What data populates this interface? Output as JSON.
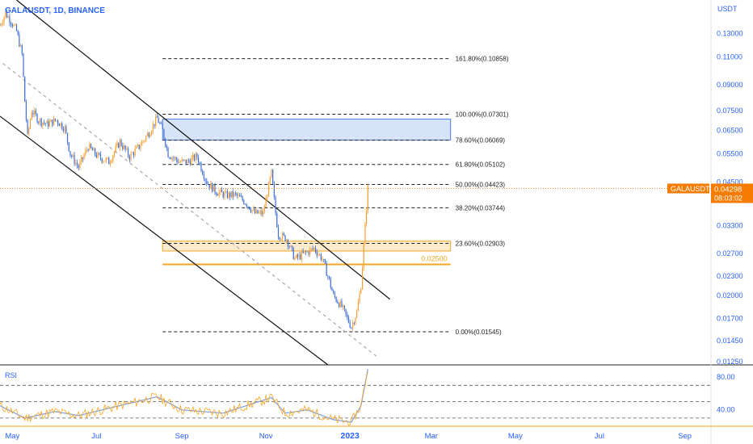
{
  "header": {
    "symbol_text": "GALAUSDT, 1D, BINANCE"
  },
  "price_axis": {
    "unit_label": "USDT",
    "ticks": [
      0.13,
      0.11,
      0.09,
      0.075,
      0.065,
      0.055,
      0.045,
      0.033,
      0.027,
      0.023,
      0.02,
      0.017,
      0.0145,
      0.0125
    ],
    "tick_labels": [
      "0.13000",
      "0.11000",
      "0.09000",
      "0.07500",
      "0.06500",
      "0.05500",
      "0.04500",
      "0.03300",
      "0.02700",
      "0.02300",
      "0.02000",
      "0.01700",
      "0.01450",
      "0.01250"
    ],
    "scale": "log",
    "range": [
      0.0122,
      0.165
    ]
  },
  "current_price": {
    "symbol_tag": "GALAUSDT",
    "price_label": "0.04298",
    "countdown": "08:03:02",
    "value": 0.04298,
    "color": "#f57c00"
  },
  "fib_levels": [
    {
      "ratio": 1.618,
      "value": 0.10858,
      "label": "161.80%(0.10858)"
    },
    {
      "ratio": 1.0,
      "value": 0.07301,
      "label": "100.00%(0.07301)"
    },
    {
      "ratio": 0.786,
      "value": 0.06069,
      "label": "78.60%(0.06069)"
    },
    {
      "ratio": 0.618,
      "value": 0.05102,
      "label": "61.80%(0.05102)"
    },
    {
      "ratio": 0.5,
      "value": 0.04423,
      "label": "50.00%(0.04423)"
    },
    {
      "ratio": 0.382,
      "value": 0.03744,
      "label": "38.20%(0.03744)"
    },
    {
      "ratio": 0.236,
      "value": 0.02903,
      "label": "23.60%(0.02903)"
    },
    {
      "ratio": 0.0,
      "value": 0.01545,
      "label": "0.00%(0.01545)"
    }
  ],
  "zones": [
    {
      "name": "supply-zone",
      "from_date": "2022-08-18",
      "to_date": "2023-03-15",
      "low": 0.06069,
      "high": 0.0705,
      "color": "#4a7fe0"
    },
    {
      "name": "support-zone",
      "from_date": "2022-08-18",
      "to_date": "2023-03-15",
      "low": 0.0275,
      "high": 0.0295,
      "color": "#f5a623"
    }
  ],
  "horizontal_line": {
    "value": 0.025,
    "label": "0.02500",
    "color": "#f5a623"
  },
  "time_axis": {
    "labels": [
      {
        "text": "May",
        "date": "2022-05-01",
        "bold": false
      },
      {
        "text": "Jul",
        "date": "2022-07-01",
        "bold": false
      },
      {
        "text": "Sep",
        "date": "2022-09-01",
        "bold": false
      },
      {
        "text": "Nov",
        "date": "2022-11-01",
        "bold": false
      },
      {
        "text": "2023",
        "date": "2023-01-01",
        "bold": true
      },
      {
        "text": "Mar",
        "date": "2023-03-01",
        "bold": false
      },
      {
        "text": "May",
        "date": "2023-05-01",
        "bold": false
      },
      {
        "text": "Jul",
        "date": "2023-07-01",
        "bold": false
      },
      {
        "text": "Sep",
        "date": "2023-09-01",
        "bold": false
      }
    ]
  },
  "rsi": {
    "label": "RSI",
    "tick_labels": [
      "80.00",
      "40.00"
    ],
    "ticks": [
      80,
      40
    ],
    "band_levels": [
      70,
      50,
      30
    ],
    "range": [
      20,
      95
    ]
  },
  "chart_data": {
    "type": "candlestick",
    "symbol": "GALAUSDT",
    "interval": "1D",
    "exchange": "BINANCE",
    "x_range": [
      "2022-04-22",
      "2023-09-20"
    ],
    "y_scale": "log",
    "y_range": [
      0.0122,
      0.165
    ],
    "up_color": "#f7a032",
    "down_color": "#3f6fd6",
    "price_path": [
      [
        "2022-04-22",
        0.138
      ],
      [
        "2022-04-26",
        0.15
      ],
      [
        "2022-04-30",
        0.142
      ],
      [
        "2022-05-04",
        0.132
      ],
      [
        "2022-05-08",
        0.112
      ],
      [
        "2022-05-10",
        0.08
      ],
      [
        "2022-05-12",
        0.062
      ],
      [
        "2022-05-15",
        0.075
      ],
      [
        "2022-05-20",
        0.07
      ],
      [
        "2022-05-26",
        0.068
      ],
      [
        "2022-06-02",
        0.07
      ],
      [
        "2022-06-08",
        0.066
      ],
      [
        "2022-06-12",
        0.055
      ],
      [
        "2022-06-18",
        0.05
      ],
      [
        "2022-06-25",
        0.058
      ],
      [
        "2022-07-02",
        0.054
      ],
      [
        "2022-07-10",
        0.052
      ],
      [
        "2022-07-18",
        0.06
      ],
      [
        "2022-07-25",
        0.054
      ],
      [
        "2022-08-01",
        0.058
      ],
      [
        "2022-08-08",
        0.064
      ],
      [
        "2022-08-14",
        0.071
      ],
      [
        "2022-08-18",
        0.065
      ],
      [
        "2022-08-22",
        0.055
      ],
      [
        "2022-08-30",
        0.052
      ],
      [
        "2022-09-05",
        0.052
      ],
      [
        "2022-09-12",
        0.054
      ],
      [
        "2022-09-19",
        0.045
      ],
      [
        "2022-09-26",
        0.042
      ],
      [
        "2022-10-03",
        0.041
      ],
      [
        "2022-10-10",
        0.041
      ],
      [
        "2022-10-17",
        0.039
      ],
      [
        "2022-10-24",
        0.036
      ],
      [
        "2022-10-30",
        0.036
      ],
      [
        "2022-11-05",
        0.048
      ],
      [
        "2022-11-08",
        0.036
      ],
      [
        "2022-11-10",
        0.031
      ],
      [
        "2022-11-16",
        0.03
      ],
      [
        "2022-11-22",
        0.026
      ],
      [
        "2022-11-29",
        0.027
      ],
      [
        "2022-12-06",
        0.028
      ],
      [
        "2022-12-12",
        0.026
      ],
      [
        "2022-12-16",
        0.023
      ],
      [
        "2022-12-20",
        0.02
      ],
      [
        "2022-12-26",
        0.0185
      ],
      [
        "2022-12-30",
        0.017
      ],
      [
        "2023-01-02",
        0.016
      ],
      [
        "2023-01-06",
        0.0178
      ],
      [
        "2023-01-09",
        0.0215
      ],
      [
        "2023-01-11",
        0.0285
      ],
      [
        "2023-01-13",
        0.0375
      ],
      [
        "2023-01-14",
        0.04298
      ]
    ],
    "channel": {
      "upper_line": [
        [
          "2022-05-04",
          0.165
        ],
        [
          "2023-01-30",
          0.0195
        ]
      ],
      "lower_line": [
        [
          "2022-04-22",
          0.072
        ],
        [
          "2022-12-16",
          0.0122
        ]
      ],
      "mid_line": [
        [
          "2022-04-24",
          0.105
        ],
        [
          "2023-01-20",
          0.013
        ]
      ]
    },
    "rsi_path": [
      [
        "2022-04-22",
        45
      ],
      [
        "2022-05-10",
        30
      ],
      [
        "2022-06-01",
        38
      ],
      [
        "2022-06-18",
        33
      ],
      [
        "2022-07-10",
        42
      ],
      [
        "2022-08-14",
        56
      ],
      [
        "2022-09-01",
        40
      ],
      [
        "2022-10-01",
        36
      ],
      [
        "2022-11-05",
        55
      ],
      [
        "2022-11-15",
        36
      ],
      [
        "2022-12-01",
        40
      ],
      [
        "2022-12-20",
        28
      ],
      [
        "2023-01-02",
        25
      ],
      [
        "2023-01-09",
        45
      ],
      [
        "2023-01-14",
        90
      ]
    ]
  }
}
